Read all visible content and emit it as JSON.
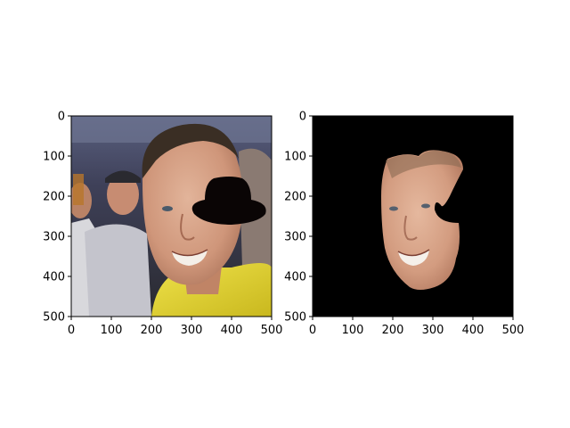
{
  "figure": {
    "background": "#ffffff",
    "panels": [
      {
        "id": "left",
        "description_kind": "photo-with-occluder",
        "xlim": [
          0,
          500
        ],
        "ylim": [
          500,
          0
        ],
        "xticks": [
          "0",
          "100",
          "200",
          "300",
          "400",
          "500"
        ],
        "yticks": [
          "0",
          "100",
          "200",
          "300",
          "400",
          "500"
        ],
        "colors": {
          "backdrop_top": "#4a4f6e",
          "backdrop_mid": "#3a3a48",
          "skin": "#d49a80",
          "jersey": "#e2d42a",
          "hair": "#3a2e24",
          "occluder": "#0a0505",
          "left_person_shirt": "#c9c9cf"
        }
      },
      {
        "id": "right",
        "description_kind": "segmented-face-mask",
        "xlim": [
          0,
          500
        ],
        "ylim": [
          500,
          0
        ],
        "xticks": [
          "0",
          "100",
          "200",
          "300",
          "400",
          "500"
        ],
        "yticks": [
          "0",
          "100",
          "200",
          "300",
          "400",
          "500"
        ],
        "colors": {
          "background": "#000000",
          "skin": "#d9a488"
        }
      }
    ]
  }
}
